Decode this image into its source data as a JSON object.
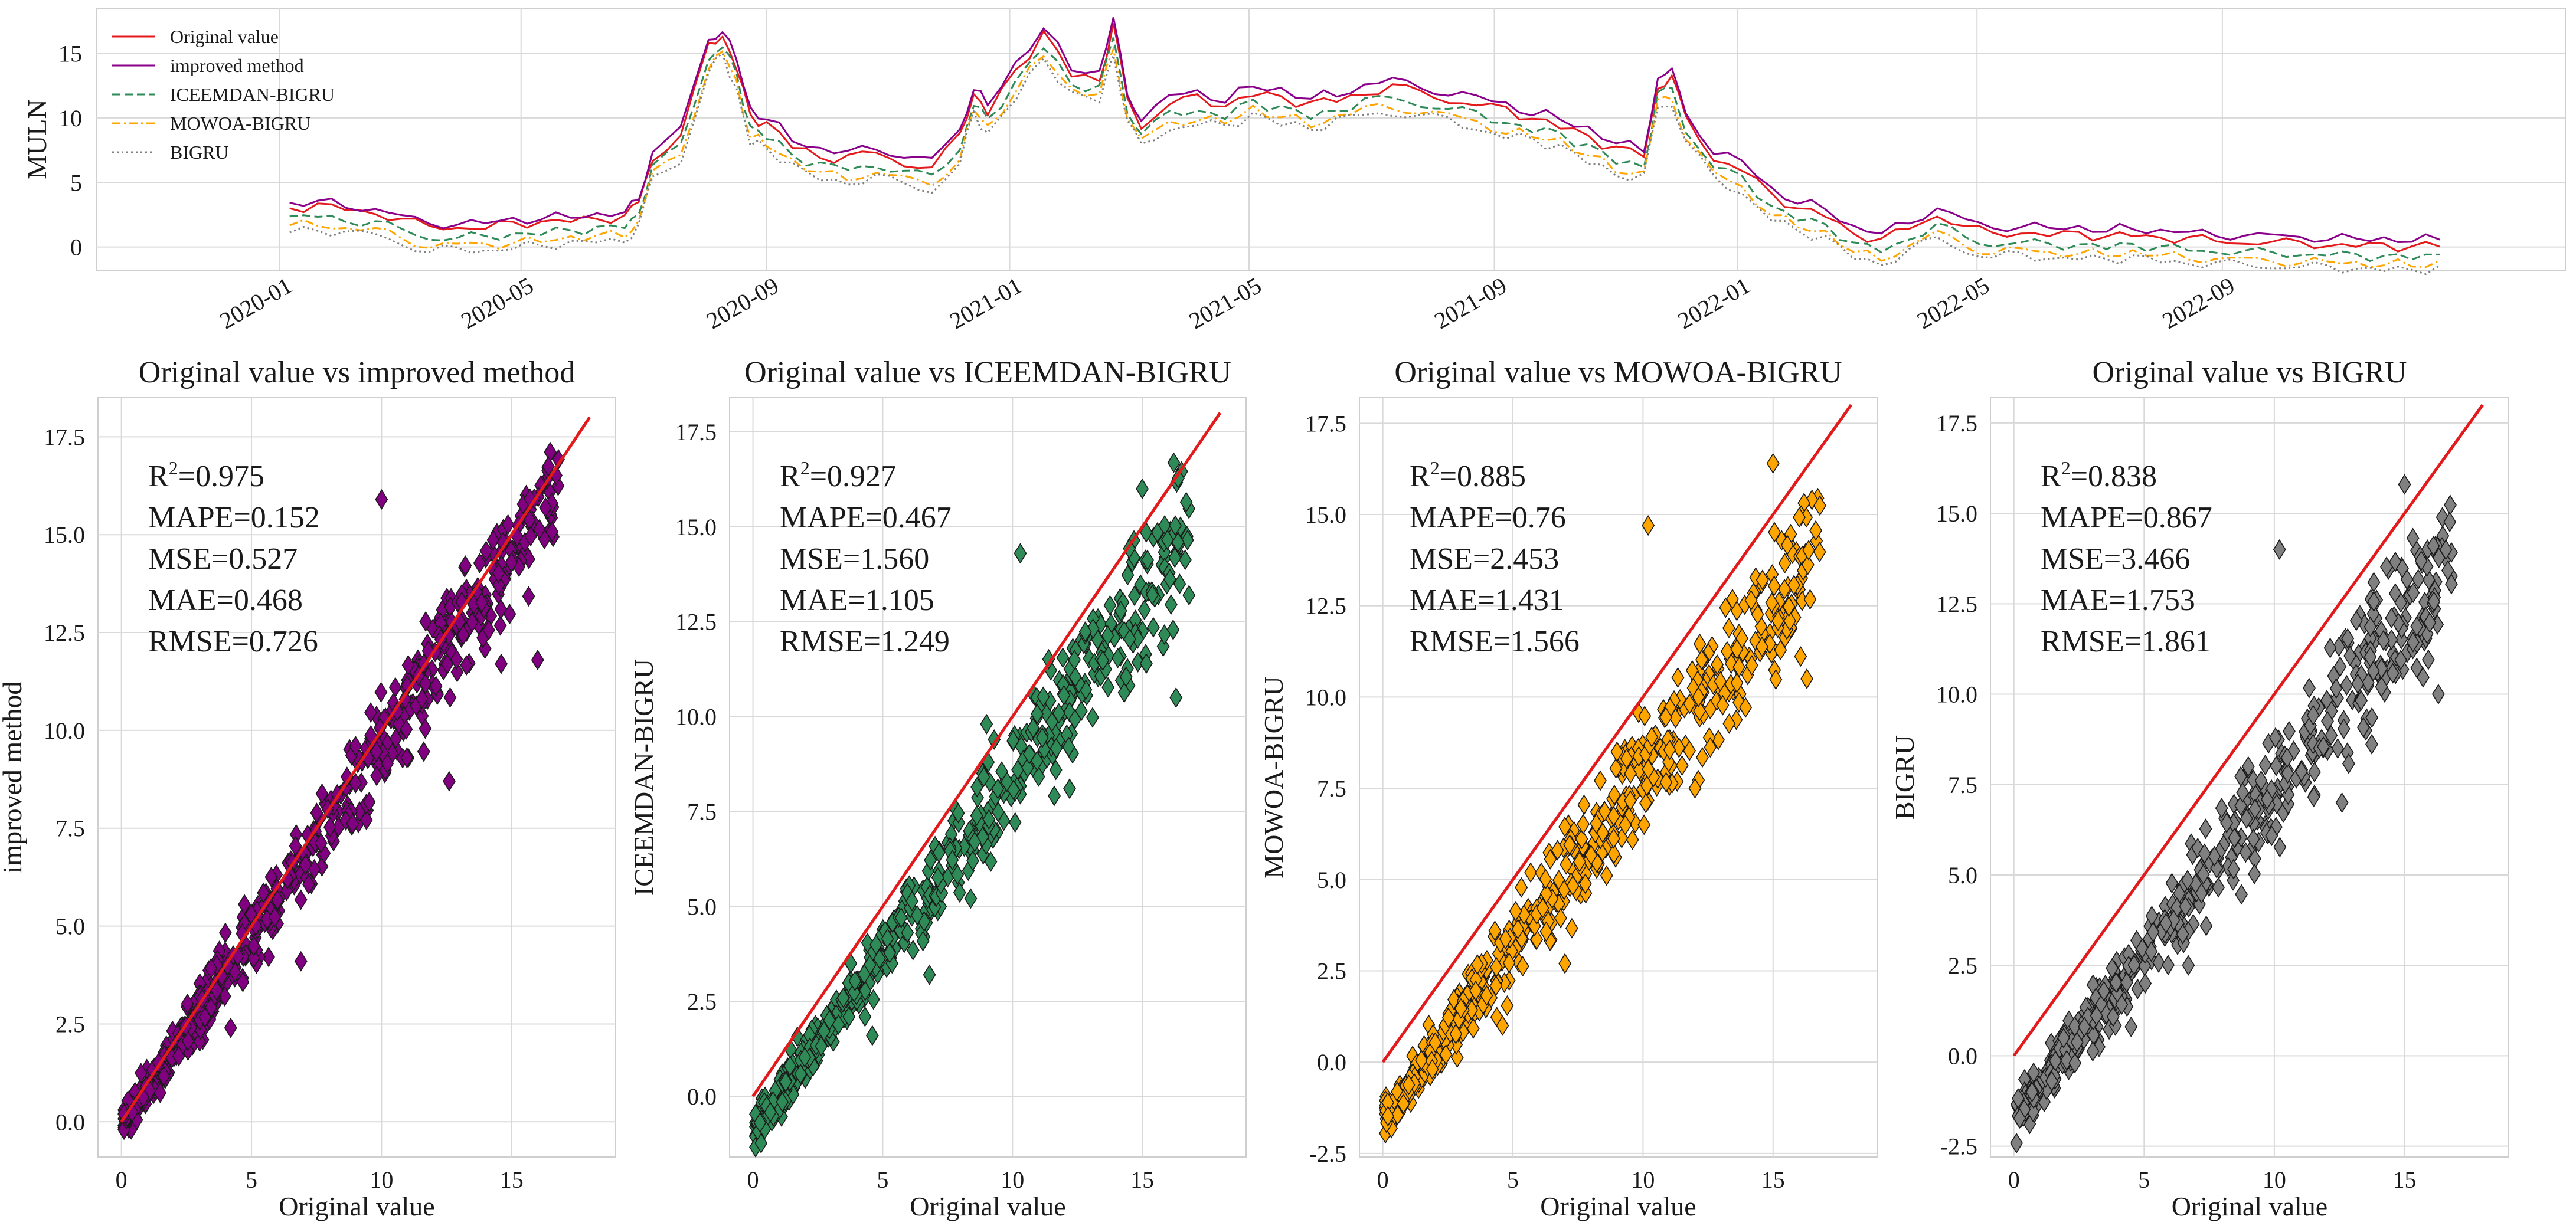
{
  "chart_data": [
    {
      "type": "line",
      "ylabel": "MULN",
      "xlabel": "",
      "ylim": [
        -1.8,
        18.5
      ],
      "yticks": [
        0,
        5,
        10,
        15
      ],
      "xlim": [
        "2019-10-01",
        "2023-02-20"
      ],
      "xticks": [
        "2020-01",
        "2020-05",
        "2020-09",
        "2021-01",
        "2021-05",
        "2021-09",
        "2022-01",
        "2022-05",
        "2022-09"
      ],
      "legend_position": "top-left",
      "dates": [
        "2020-01-06",
        "2020-01-20",
        "2020-02-03",
        "2020-02-18",
        "2020-03-02",
        "2020-03-16",
        "2020-03-30",
        "2020-04-13",
        "2020-04-27",
        "2020-05-11",
        "2020-05-26",
        "2020-06-08",
        "2020-06-22",
        "2020-06-29",
        "2020-07-06",
        "2020-07-20",
        "2020-08-03",
        "2020-08-10",
        "2020-08-17",
        "2020-08-24",
        "2020-09-01",
        "2020-09-14",
        "2020-09-28",
        "2020-10-12",
        "2020-10-26",
        "2020-11-09",
        "2020-11-23",
        "2020-12-07",
        "2020-12-14",
        "2020-12-21",
        "2021-01-04",
        "2021-01-18",
        "2021-02-01",
        "2021-02-15",
        "2021-02-22",
        "2021-03-01",
        "2021-03-08",
        "2021-03-22",
        "2021-04-05",
        "2021-04-19",
        "2021-05-03",
        "2021-05-17",
        "2021-06-01",
        "2021-06-14",
        "2021-06-28",
        "2021-07-12",
        "2021-07-26",
        "2021-08-09",
        "2021-08-23",
        "2021-09-07",
        "2021-09-20",
        "2021-10-04",
        "2021-10-18",
        "2021-11-01",
        "2021-11-15",
        "2021-11-22",
        "2021-11-29",
        "2021-12-06",
        "2021-12-20",
        "2022-01-03",
        "2022-01-18",
        "2022-01-31",
        "2022-02-14",
        "2022-02-28",
        "2022-03-14",
        "2022-03-28",
        "2022-04-11",
        "2022-04-25",
        "2022-05-09",
        "2022-05-23",
        "2022-06-06",
        "2022-06-21",
        "2022-07-05",
        "2022-07-18",
        "2022-08-01",
        "2022-08-15",
        "2022-08-29",
        "2022-09-12",
        "2022-09-26",
        "2022-10-10",
        "2022-10-24",
        "2022-11-07",
        "2022-11-21",
        "2022-12-05",
        "2022-12-19"
      ],
      "series": [
        {
          "name": "Original value",
          "color": "#e41a1c",
          "style": "solid",
          "values": [
            3.0,
            3.2,
            2.9,
            2.7,
            2.1,
            1.5,
            1.6,
            1.5,
            1.8,
            1.9,
            2.1,
            2.2,
            2.3,
            3.5,
            7.0,
            8.5,
            15.5,
            16.5,
            14.0,
            10.0,
            9.5,
            8.0,
            7.0,
            6.8,
            7.3,
            6.6,
            6.1,
            8.5,
            12.0,
            10.5,
            13.5,
            16.5,
            13.5,
            13.0,
            17.0,
            11.5,
            9.5,
            11.0,
            11.5,
            11.0,
            12.0,
            11.5,
            11.0,
            11.5,
            12.0,
            12.3,
            12.0,
            11.5,
            11.0,
            10.5,
            10.0,
            9.5,
            8.5,
            7.5,
            7.2,
            12.5,
            13.0,
            10.0,
            7.0,
            6.0,
            4.0,
            3.0,
            2.5,
            1.0,
            0.5,
            1.5,
            2.5,
            1.5,
            1.0,
            1.2,
            0.9,
            1.0,
            0.8,
            1.0,
            0.7,
            0.6,
            0.5,
            0.4,
            0.3,
            0.3,
            0.2,
            0.1,
            0.1,
            0.0,
            0.2
          ]
        },
        {
          "name": "improved method",
          "color": "#8b008b",
          "style": "solid",
          "values": [
            3.3,
            3.5,
            3.2,
            3.0,
            2.3,
            1.8,
            1.9,
            1.8,
            2.1,
            2.2,
            2.4,
            2.5,
            2.6,
            3.8,
            7.5,
            9.0,
            16.0,
            17.0,
            14.5,
            10.5,
            10.0,
            8.5,
            7.5,
            7.2,
            7.8,
            7.1,
            6.6,
            9.0,
            12.5,
            11.0,
            14.0,
            17.0,
            14.0,
            13.5,
            17.5,
            12.0,
            10.0,
            11.5,
            12.0,
            11.5,
            12.5,
            12.0,
            11.5,
            12.0,
            12.5,
            12.8,
            12.5,
            12.0,
            11.5,
            11.0,
            10.5,
            10.0,
            9.0,
            8.0,
            7.7,
            13.0,
            13.5,
            10.5,
            7.5,
            6.5,
            4.5,
            3.5,
            3.0,
            1.5,
            1.0,
            2.0,
            3.0,
            2.0,
            1.5,
            1.7,
            1.4,
            1.5,
            1.3,
            1.5,
            1.2,
            1.1,
            1.0,
            0.9,
            0.8,
            0.8,
            0.7,
            0.6,
            0.6,
            0.5,
            0.7
          ]
        },
        {
          "name": "ICEEMDAN-BIGRU",
          "color": "#2e8b57",
          "style": "dashed",
          "values": [
            2.2,
            2.4,
            2.1,
            1.9,
            1.3,
            0.7,
            0.8,
            0.7,
            1.0,
            1.1,
            1.3,
            1.4,
            1.5,
            2.7,
            6.2,
            7.7,
            14.7,
            15.7,
            13.2,
            9.2,
            8.7,
            7.2,
            6.2,
            6.0,
            6.5,
            5.8,
            5.3,
            7.7,
            11.2,
            9.7,
            12.7,
            15.7,
            12.7,
            12.2,
            16.2,
            10.7,
            8.7,
            10.2,
            10.7,
            10.2,
            11.2,
            10.7,
            10.2,
            10.7,
            11.2,
            11.5,
            11.2,
            10.7,
            10.2,
            9.7,
            9.2,
            8.7,
            7.7,
            6.7,
            6.4,
            11.7,
            12.2,
            9.2,
            6.2,
            5.2,
            3.2,
            2.2,
            1.7,
            0.2,
            -0.3,
            0.7,
            1.7,
            0.7,
            0.2,
            0.4,
            0.1,
            0.2,
            0.0,
            0.2,
            -0.1,
            -0.2,
            -0.3,
            -0.4,
            -0.5,
            -0.5,
            -0.6,
            -0.7,
            -0.7,
            -0.8,
            -0.6
          ]
        },
        {
          "name": "MOWOA-BIGRU",
          "color": "#ffa500",
          "style": "dashdot",
          "values": [
            1.6,
            1.8,
            1.5,
            1.3,
            0.7,
            0.1,
            0.2,
            0.1,
            0.4,
            0.5,
            0.7,
            0.8,
            0.9,
            2.1,
            5.6,
            7.1,
            14.1,
            15.1,
            12.6,
            8.6,
            8.1,
            6.6,
            5.6,
            5.4,
            5.9,
            5.2,
            4.7,
            7.1,
            10.6,
            9.1,
            12.1,
            15.1,
            12.1,
            11.6,
            15.6,
            10.1,
            8.1,
            9.6,
            10.1,
            9.6,
            10.6,
            10.1,
            9.6,
            10.1,
            10.6,
            10.9,
            10.6,
            10.1,
            9.6,
            9.1,
            8.6,
            8.1,
            7.1,
            6.1,
            5.8,
            11.1,
            11.6,
            8.6,
            5.6,
            4.6,
            2.6,
            1.6,
            1.1,
            -0.4,
            -0.9,
            0.1,
            1.1,
            0.1,
            -0.4,
            -0.2,
            -0.5,
            -0.4,
            -0.6,
            -0.4,
            -0.7,
            -0.8,
            -0.9,
            -1.0,
            -1.1,
            -1.1,
            -1.2,
            -1.3,
            -1.3,
            -1.4,
            -1.2
          ]
        },
        {
          "name": "BIGRU",
          "color": "#808080",
          "style": "dotted",
          "values": [
            1.2,
            1.4,
            1.1,
            0.9,
            0.3,
            -0.3,
            -0.2,
            -0.3,
            0.0,
            0.1,
            0.3,
            0.4,
            0.5,
            1.7,
            5.2,
            6.7,
            13.7,
            14.7,
            12.2,
            8.2,
            7.7,
            6.2,
            5.2,
            5.0,
            5.5,
            4.8,
            4.3,
            6.7,
            10.2,
            8.7,
            11.7,
            14.7,
            11.7,
            11.2,
            15.2,
            9.7,
            7.7,
            9.2,
            9.7,
            9.2,
            10.2,
            9.7,
            9.2,
            9.7,
            10.2,
            10.5,
            10.2,
            9.7,
            9.2,
            8.7,
            8.2,
            7.7,
            6.7,
            5.7,
            5.4,
            10.7,
            11.2,
            8.2,
            5.2,
            4.2,
            2.2,
            1.2,
            0.7,
            -0.8,
            -1.3,
            -0.3,
            0.7,
            -0.3,
            -0.8,
            -0.6,
            -0.9,
            -0.8,
            -1.0,
            -0.8,
            -1.1,
            -1.2,
            -1.3,
            -1.4,
            -1.5,
            -1.5,
            -1.6,
            -1.7,
            -1.7,
            -1.8,
            -1.6
          ]
        }
      ]
    },
    {
      "type": "scatter",
      "title": "Original value vs improved method",
      "xlabel": "Original value",
      "ylabel": "improved method",
      "xlim": [
        -0.9,
        19.0
      ],
      "ylim": [
        -0.9,
        18.5
      ],
      "xticks": [
        0,
        5,
        10,
        15
      ],
      "yticks": [
        0.0,
        2.5,
        5.0,
        7.5,
        10.0,
        12.5,
        15.0,
        17.5
      ],
      "marker": "diamond",
      "color": "#800080",
      "diagonal": {
        "from": [
          0,
          0
        ],
        "to": [
          18,
          18
        ],
        "color": "#e31a1c"
      },
      "metrics": [
        "MAPE=0.152",
        "MSE=0.527",
        "MAE=0.468",
        "RMSE=0.726"
      ],
      "r2": "0.975",
      "r2_prefix": "R",
      "r2_sup": "2",
      "r2_eq": "=",
      "trend": {
        "slope": 0.98,
        "intercept": -0.1,
        "spread": 0.55
      },
      "outliers": [
        [
          10.0,
          15.9
        ],
        [
          14.6,
          11.7
        ],
        [
          12.6,
          8.7
        ],
        [
          6.9,
          4.1
        ],
        [
          4.2,
          2.4
        ],
        [
          16.0,
          11.8
        ],
        [
          9.0,
          9.6
        ]
      ]
    },
    {
      "type": "scatter",
      "title": "Original value vs ICEEMDAN-BIGRU",
      "xlabel": "Original value",
      "ylabel": "ICEEMDAN-BIGRU",
      "xlim": [
        -0.9,
        19.0
      ],
      "ylim": [
        -1.6,
        18.4
      ],
      "xticks": [
        0,
        5,
        10,
        15
      ],
      "yticks": [
        0.0,
        2.5,
        5.0,
        7.5,
        10.0,
        12.5,
        15.0,
        17.5
      ],
      "marker": "diamond",
      "color": "#2e8b57",
      "diagonal": {
        "from": [
          0,
          0
        ],
        "to": [
          18,
          18
        ],
        "color": "#e31a1c"
      },
      "metrics": [
        "MAPE=0.467",
        "MSE=1.560",
        "MAE=1.105",
        "RMSE=1.249"
      ],
      "r2": "0.927",
      "r2_prefix": "R",
      "r2_sup": "2",
      "r2_eq": "=",
      "trend": {
        "slope": 0.93,
        "intercept": -0.9,
        "spread": 0.6
      },
      "outliers": [
        [
          16.3,
          10.5
        ],
        [
          12.2,
          8.1
        ],
        [
          10.3,
          14.3
        ],
        [
          6.8,
          3.2
        ],
        [
          4.6,
          1.6
        ],
        [
          9.0,
          9.8
        ],
        [
          15.0,
          16.0
        ]
      ]
    },
    {
      "type": "scatter",
      "title": "Original value vs MOWOA-BIGRU",
      "xlabel": "Original value",
      "ylabel": "MOWOA-BIGRU",
      "xlim": [
        -0.9,
        19.0
      ],
      "ylim": [
        -2.6,
        18.2
      ],
      "xticks": [
        0,
        5,
        10,
        15
      ],
      "yticks": [
        -2.5,
        0.0,
        2.5,
        5.0,
        7.5,
        10.0,
        12.5,
        15.0,
        17.5
      ],
      "marker": "diamond",
      "color": "#ffa500",
      "diagonal": {
        "from": [
          0,
          0
        ],
        "to": [
          18,
          18
        ],
        "color": "#e31a1c"
      },
      "metrics": [
        "MAPE=0.76",
        "MSE=2.453",
        "MAE=1.431",
        "RMSE=1.566"
      ],
      "r2": "0.885",
      "r2_prefix": "R",
      "r2_sup": "2",
      "r2_eq": "=",
      "trend": {
        "slope": 0.93,
        "intercept": -1.5,
        "spread": 0.7
      },
      "outliers": [
        [
          16.3,
          10.5
        ],
        [
          12.0,
          7.5
        ],
        [
          10.2,
          14.7
        ],
        [
          7.0,
          2.7
        ],
        [
          4.6,
          1.0
        ],
        [
          15.0,
          16.4
        ],
        [
          9.0,
          8.5
        ]
      ]
    },
    {
      "type": "scatter",
      "title": "Original value vs BIGRU",
      "xlabel": "Original value",
      "ylabel": "BIGRU",
      "xlim": [
        -0.9,
        19.0
      ],
      "ylim": [
        -2.8,
        18.2
      ],
      "xticks": [
        0,
        5,
        10,
        15
      ],
      "yticks": [
        -2.5,
        0.0,
        2.5,
        5.0,
        7.5,
        10.0,
        12.5,
        15.0,
        17.5
      ],
      "marker": "diamond",
      "color": "#808080",
      "diagonal": {
        "from": [
          0,
          0
        ],
        "to": [
          18,
          18
        ],
        "color": "#e31a1c"
      },
      "metrics": [
        "MAPE=0.867",
        "MSE=3.466",
        "MAE=1.753",
        "RMSE=1.861"
      ],
      "r2": "0.838",
      "r2_prefix": "R",
      "r2_sup": "2",
      "r2_eq": "=",
      "trend": {
        "slope": 0.92,
        "intercept": -1.8,
        "spread": 0.7
      },
      "outliers": [
        [
          16.3,
          10.0
        ],
        [
          12.6,
          7.0
        ],
        [
          10.2,
          14.0
        ],
        [
          6.7,
          2.5
        ],
        [
          4.5,
          0.8
        ],
        [
          15.0,
          15.8
        ],
        [
          9.0,
          8.0
        ]
      ]
    }
  ]
}
